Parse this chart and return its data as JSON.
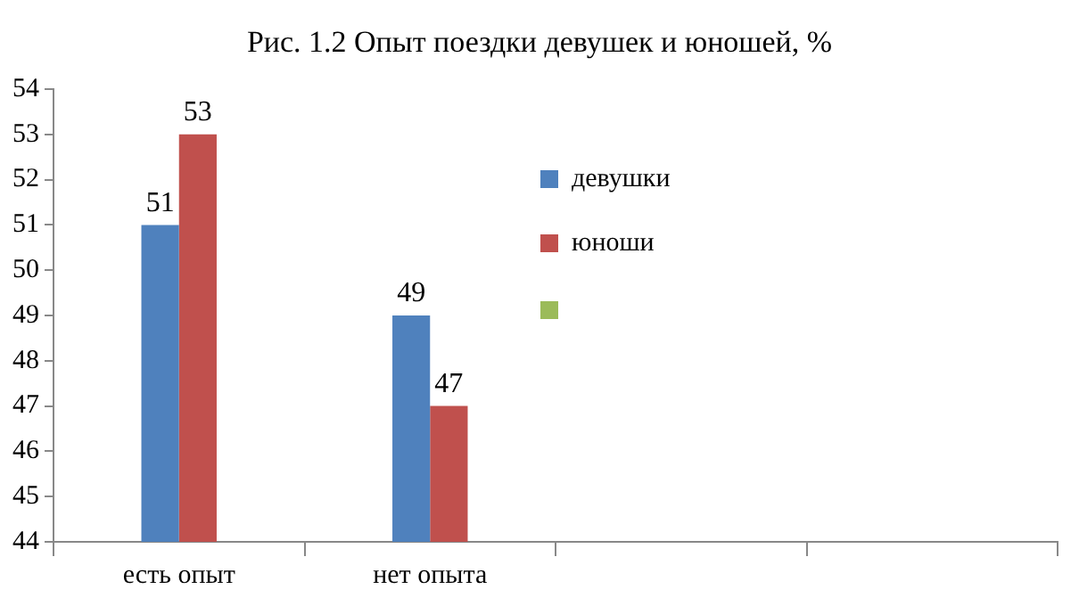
{
  "chart_data": {
    "type": "bar",
    "title": "Рис. 1.2 Опыт поездки девушек и юношей, %",
    "categories": [
      "есть опыт",
      "нет опыта",
      null,
      null
    ],
    "series": [
      {
        "name": "девушки",
        "color": "#4f81bd",
        "values": [
          51,
          49,
          null,
          null
        ]
      },
      {
        "name": "юноши",
        "color": "#c0504d",
        "values": [
          53,
          47,
          null,
          null
        ]
      }
    ],
    "ylim": [
      44,
      54
    ],
    "yticks": [
      44,
      45,
      46,
      47,
      48,
      49,
      50,
      51,
      52,
      53,
      54
    ],
    "grid": false,
    "legend": "right",
    "data_labels": true
  }
}
